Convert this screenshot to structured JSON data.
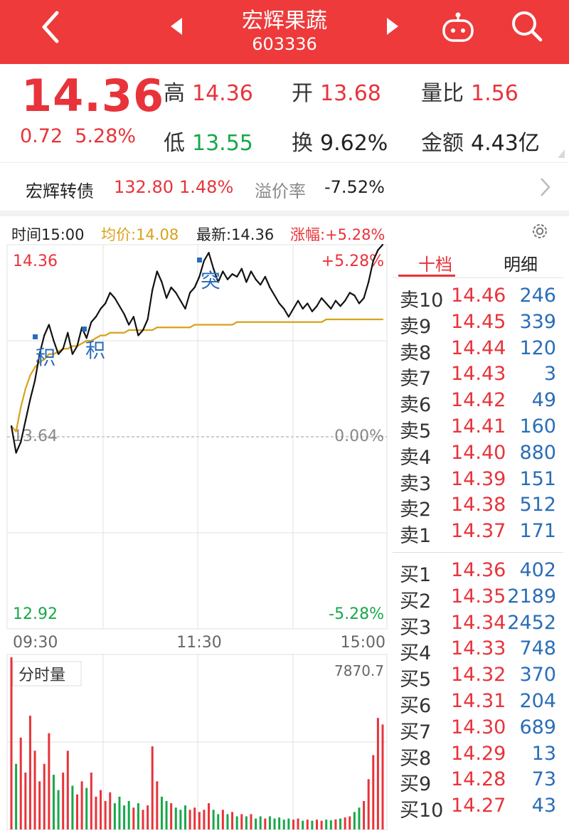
{
  "header": {
    "name": "宏辉果蔬",
    "code": "603336"
  },
  "quote": {
    "price": "14.36",
    "change": "0.72",
    "change_pct": "5.28%",
    "high_label": "高",
    "high": "14.36",
    "low_label": "低",
    "low": "13.55",
    "open_label": "开",
    "open": "13.68",
    "turnover_label": "换",
    "turnover": "9.62%",
    "vol_ratio_label": "量比",
    "vol_ratio": "1.56",
    "amount_label": "金额",
    "amount": "4.43亿"
  },
  "bond": {
    "name": "宏辉转债",
    "price": "132.80",
    "pct": "1.48%",
    "premium_label": "溢价率",
    "premium": "-7.52%"
  },
  "legend": {
    "time": "时间15:00",
    "avg": "均价:14.08",
    "latest": "最新:14.36",
    "chg": "涨幅:+5.28%"
  },
  "chart_labels": {
    "top_price": "14.36",
    "top_pct": "+5.28%",
    "mid_price": "13.64",
    "mid_pct": "0.00%",
    "bot_price": "12.92",
    "bot_pct": "-5.28%",
    "x_start": "09:30",
    "x_mid": "11:30",
    "x_end": "15:00",
    "vol_title": "分时量",
    "vol_max": "7870.7",
    "marker_ji": "积",
    "marker_tu": "突"
  },
  "chart_data": {
    "type": "line",
    "x_range": [
      "09:30",
      "15:00"
    ],
    "ylim": [
      12.92,
      14.36
    ],
    "base_price": 13.64,
    "price": [
      13.68,
      13.58,
      13.62,
      13.7,
      13.78,
      13.85,
      13.95,
      14.02,
      14.06,
      14.0,
      13.95,
      13.97,
      14.03,
      13.95,
      13.98,
      14.05,
      14.01,
      14.07,
      14.09,
      14.12,
      14.14,
      14.18,
      14.16,
      14.13,
      14.1,
      14.06,
      14.09,
      14.02,
      14.04,
      14.08,
      14.19,
      14.26,
      14.22,
      14.16,
      14.2,
      14.18,
      14.15,
      14.12,
      14.18,
      14.2,
      14.24,
      14.3,
      14.33,
      14.27,
      14.22,
      14.26,
      14.23,
      14.25,
      14.24,
      14.27,
      14.22,
      14.26,
      14.23,
      14.21,
      14.24,
      14.2,
      14.17,
      14.14,
      14.12,
      14.09,
      14.12,
      14.15,
      14.12,
      14.14,
      14.11,
      14.13,
      14.16,
      14.14,
      14.12,
      14.15,
      14.13,
      14.15,
      14.18,
      14.17,
      14.14,
      14.16,
      14.22,
      14.3,
      14.34,
      14.36
    ],
    "avg": [
      13.68,
      13.66,
      13.75,
      13.82,
      13.87,
      13.9,
      13.92,
      13.93,
      13.95,
      13.95,
      13.96,
      13.97,
      13.97,
      13.98,
      13.98,
      13.99,
      14.0,
      14.0,
      14.01,
      14.02,
      14.02,
      14.03,
      14.03,
      14.03,
      14.03,
      14.04,
      14.04,
      14.04,
      14.04,
      14.04,
      14.04,
      14.05,
      14.05,
      14.05,
      14.05,
      14.05,
      14.05,
      14.05,
      14.05,
      14.06,
      14.06,
      14.06,
      14.06,
      14.06,
      14.06,
      14.06,
      14.06,
      14.06,
      14.07,
      14.07,
      14.07,
      14.07,
      14.07,
      14.07,
      14.07,
      14.07,
      14.07,
      14.07,
      14.07,
      14.07,
      14.07,
      14.07,
      14.07,
      14.07,
      14.07,
      14.07,
      14.07,
      14.08,
      14.08,
      14.08,
      14.08,
      14.08,
      14.08,
      14.08,
      14.08,
      14.08,
      14.08,
      14.08,
      14.08,
      14.08
    ],
    "volume": [
      7870.7,
      3000,
      4200,
      2600,
      5200,
      3600,
      2200,
      3000,
      4400,
      2500,
      1800,
      2600,
      3600,
      2000,
      1600,
      2200,
      1900,
      2600,
      1500,
      1800,
      1300,
      1700,
      1200,
      1500,
      1100,
      1300,
      1000,
      1200,
      900,
      1100,
      3800,
      2200,
      1500,
      1300,
      1200,
      1000,
      900,
      1100,
      900,
      1000,
      800,
      900,
      1200,
      900,
      700,
      900,
      700,
      800,
      600,
      700,
      600,
      700,
      500,
      600,
      500,
      600,
      500,
      550,
      450,
      500,
      450,
      500,
      400,
      450,
      400,
      450,
      400,
      450,
      420,
      460,
      500,
      550,
      600,
      800,
      1000,
      1300,
      2300,
      3400,
      5100,
      4800
    ],
    "volume_max": 7870.7
  },
  "panel": {
    "tabs": [
      "十档",
      "明细"
    ],
    "asks": [
      {
        "name": "卖10",
        "price": "14.46",
        "vol": "246"
      },
      {
        "name": "卖9",
        "price": "14.45",
        "vol": "339"
      },
      {
        "name": "卖8",
        "price": "14.44",
        "vol": "120"
      },
      {
        "name": "卖7",
        "price": "14.43",
        "vol": "3"
      },
      {
        "name": "卖6",
        "price": "14.42",
        "vol": "49"
      },
      {
        "name": "卖5",
        "price": "14.41",
        "vol": "160"
      },
      {
        "name": "卖4",
        "price": "14.40",
        "vol": "880"
      },
      {
        "name": "卖3",
        "price": "14.39",
        "vol": "151"
      },
      {
        "name": "卖2",
        "price": "14.38",
        "vol": "512"
      },
      {
        "name": "卖1",
        "price": "14.37",
        "vol": "171"
      }
    ],
    "bids": [
      {
        "name": "买1",
        "price": "14.36",
        "vol": "402"
      },
      {
        "name": "买2",
        "price": "14.35",
        "vol": "2189"
      },
      {
        "name": "买3",
        "price": "14.34",
        "vol": "2452"
      },
      {
        "name": "买4",
        "price": "14.33",
        "vol": "748"
      },
      {
        "name": "买5",
        "price": "14.32",
        "vol": "370"
      },
      {
        "name": "买6",
        "price": "14.31",
        "vol": "204"
      },
      {
        "name": "买7",
        "price": "14.30",
        "vol": "689"
      },
      {
        "name": "买8",
        "price": "14.29",
        "vol": "13"
      },
      {
        "name": "买9",
        "price": "14.28",
        "vol": "73"
      },
      {
        "name": "买10",
        "price": "14.27",
        "vol": "43"
      }
    ]
  },
  "colors": {
    "up": "#e8333a",
    "down": "#17a84a",
    "avg": "#d9a21b",
    "line": "#111111",
    "header": "#ee3a3a"
  },
  "icons": [
    "back-icon",
    "prev-stock-icon",
    "next-stock-icon",
    "robot-icon",
    "search-icon",
    "settings-icon",
    "chevron-right-icon"
  ]
}
